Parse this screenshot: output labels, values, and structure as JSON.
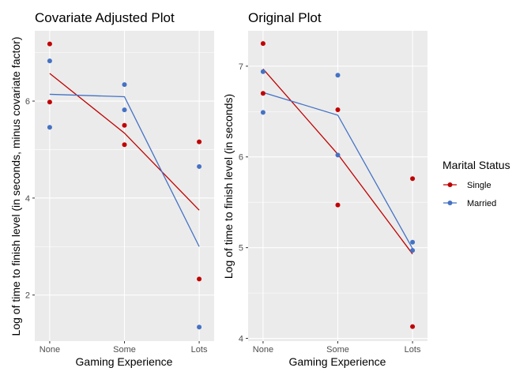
{
  "chart_data": [
    {
      "type": "line",
      "title": "Covariate Adjusted Plot",
      "xlabel": "Gaming Experience",
      "ylabel": "Log of time to finish level (in seconds, minus covariate factor)",
      "categories": [
        "None",
        "Some",
        "Lots"
      ],
      "yticks": [
        2,
        4,
        6
      ],
      "ylim": [
        1.05,
        7.45
      ],
      "grid": true,
      "series": [
        {
          "name": "Single",
          "color": "#c00000",
          "line": [
            6.57,
            5.34,
            3.75
          ],
          "points": [
            {
              "x": "None",
              "y": 7.18
            },
            {
              "x": "None",
              "y": 5.98
            },
            {
              "x": "Some",
              "y": 5.5
            },
            {
              "x": "Some",
              "y": 5.1
            },
            {
              "x": "Lots",
              "y": 5.16
            },
            {
              "x": "Lots",
              "y": 2.33
            }
          ]
        },
        {
          "name": "Married",
          "color": "#4472c4",
          "line": [
            6.14,
            6.09,
            3.0
          ],
          "points": [
            {
              "x": "None",
              "y": 6.83
            },
            {
              "x": "None",
              "y": 5.46
            },
            {
              "x": "Some",
              "y": 6.34
            },
            {
              "x": "Some",
              "y": 5.82
            },
            {
              "x": "Lots",
              "y": 4.65
            },
            {
              "x": "Lots",
              "y": 1.34
            }
          ]
        }
      ]
    },
    {
      "type": "line",
      "title": "Original Plot",
      "xlabel": "Gaming Experience",
      "ylabel": "Log of time to finish level (in seconds)",
      "categories": [
        "None",
        "Some",
        "Lots"
      ],
      "yticks": [
        4,
        5,
        6,
        7
      ],
      "ylim": [
        3.97,
        7.39
      ],
      "grid": true,
      "series": [
        {
          "name": "Single",
          "color": "#c00000",
          "line": [
            6.97,
            6.03,
            4.93
          ],
          "points": [
            {
              "x": "None",
              "y": 7.25
            },
            {
              "x": "None",
              "y": 6.7
            },
            {
              "x": "Some",
              "y": 6.52
            },
            {
              "x": "Some",
              "y": 5.47
            },
            {
              "x": "Lots",
              "y": 5.76
            },
            {
              "x": "Lots",
              "y": 4.13
            }
          ]
        },
        {
          "name": "Married",
          "color": "#4472c4",
          "line": [
            6.71,
            6.46,
            4.99
          ],
          "points": [
            {
              "x": "None",
              "y": 6.94
            },
            {
              "x": "None",
              "y": 6.49
            },
            {
              "x": "Some",
              "y": 6.9
            },
            {
              "x": "Some",
              "y": 6.02
            },
            {
              "x": "Lots",
              "y": 5.06
            },
            {
              "x": "Lots",
              "y": 4.97
            }
          ]
        }
      ]
    }
  ],
  "legend": {
    "title": "Marital Status",
    "position": "right",
    "items": [
      {
        "label": "Single",
        "color": "#c00000"
      },
      {
        "label": "Married",
        "color": "#4472c4"
      }
    ]
  }
}
